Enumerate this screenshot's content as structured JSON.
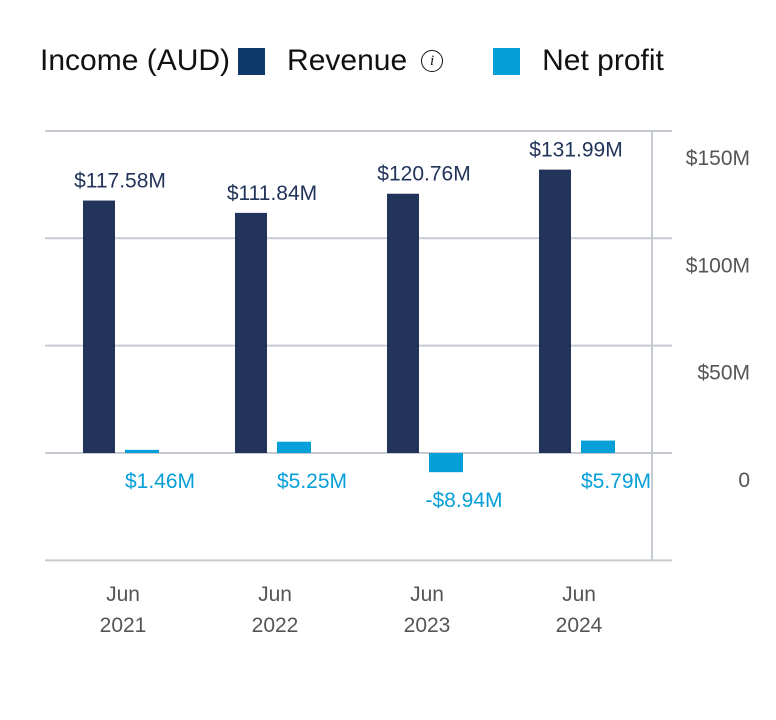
{
  "legend": {
    "title": "Income (AUD)",
    "revenue_label": "Revenue",
    "net_profit_label": "Net profit",
    "info_icon": "i"
  },
  "colors": {
    "revenue": "#22345a",
    "revenue_legend": "#0e3a6b",
    "net_profit": "#069fd8",
    "grid": "#c5cbd0",
    "axis_text": "#555555"
  },
  "chart_data": {
    "type": "bar",
    "title": "Income (AUD)",
    "categories": [
      [
        "Jun",
        "2021"
      ],
      [
        "Jun",
        "2022"
      ],
      [
        "Jun",
        "2023"
      ],
      [
        "Jun",
        "2024"
      ]
    ],
    "series": [
      {
        "name": "Revenue",
        "values": [
          117.58,
          111.84,
          120.76,
          131.99
        ],
        "labels": [
          "$117.58M",
          "$111.84M",
          "$120.76M",
          "$131.99M"
        ]
      },
      {
        "name": "Net profit",
        "values": [
          1.46,
          5.25,
          -8.94,
          5.79
        ],
        "labels": [
          "$1.46M",
          "$5.25M",
          "-$8.94M",
          "$5.79M"
        ]
      }
    ],
    "yticks": [
      {
        "value": 150,
        "label": "$150M"
      },
      {
        "value": 100,
        "label": "$100M"
      },
      {
        "value": 50,
        "label": "$50M"
      },
      {
        "value": 0,
        "label": "0"
      }
    ],
    "ylim": [
      -50,
      150
    ],
    "y_axis_position": "right",
    "grid": true,
    "legend_placement": "top"
  }
}
